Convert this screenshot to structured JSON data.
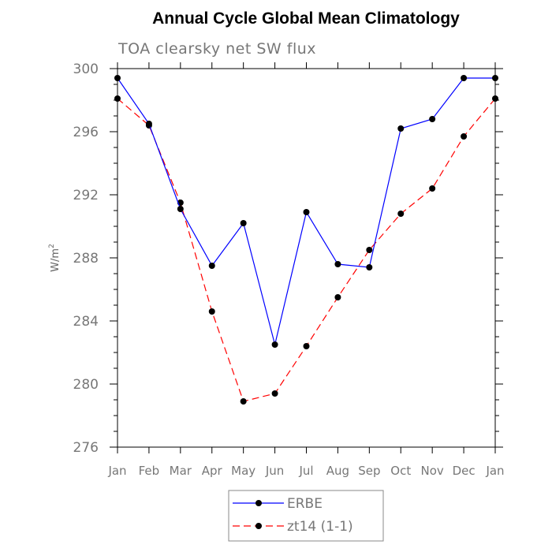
{
  "chart_data": {
    "type": "line",
    "title": "Annual Cycle Global Mean Climatology",
    "subtitle": "TOA clearsky net SW flux",
    "ylabel_base": "W/m",
    "ylabel_sup": "2",
    "categories": [
      "Jan",
      "Feb",
      "Mar",
      "Apr",
      "May",
      "Jun",
      "Jul",
      "Aug",
      "Sep",
      "Oct",
      "Nov",
      "Dec",
      "Jan"
    ],
    "ylim": [
      276,
      300
    ],
    "yticks": [
      276,
      280,
      284,
      288,
      292,
      296,
      300
    ],
    "series": [
      {
        "name": "ERBE",
        "color": "#0000ff",
        "line_style": "solid",
        "marker": "filled-circle",
        "values": [
          299.4,
          296.5,
          291.1,
          287.5,
          290.2,
          282.5,
          290.9,
          287.6,
          287.4,
          296.2,
          296.8,
          299.4,
          299.4
        ]
      },
      {
        "name": "zt14 (1-1)",
        "color": "#ff0000",
        "line_style": "dashed",
        "marker": "filled-circle",
        "values": [
          298.1,
          296.4,
          291.5,
          284.6,
          278.9,
          279.4,
          282.4,
          285.5,
          288.5,
          290.8,
          292.4,
          295.7,
          298.1
        ]
      }
    ],
    "grid": false,
    "legend_position": "bottom"
  }
}
